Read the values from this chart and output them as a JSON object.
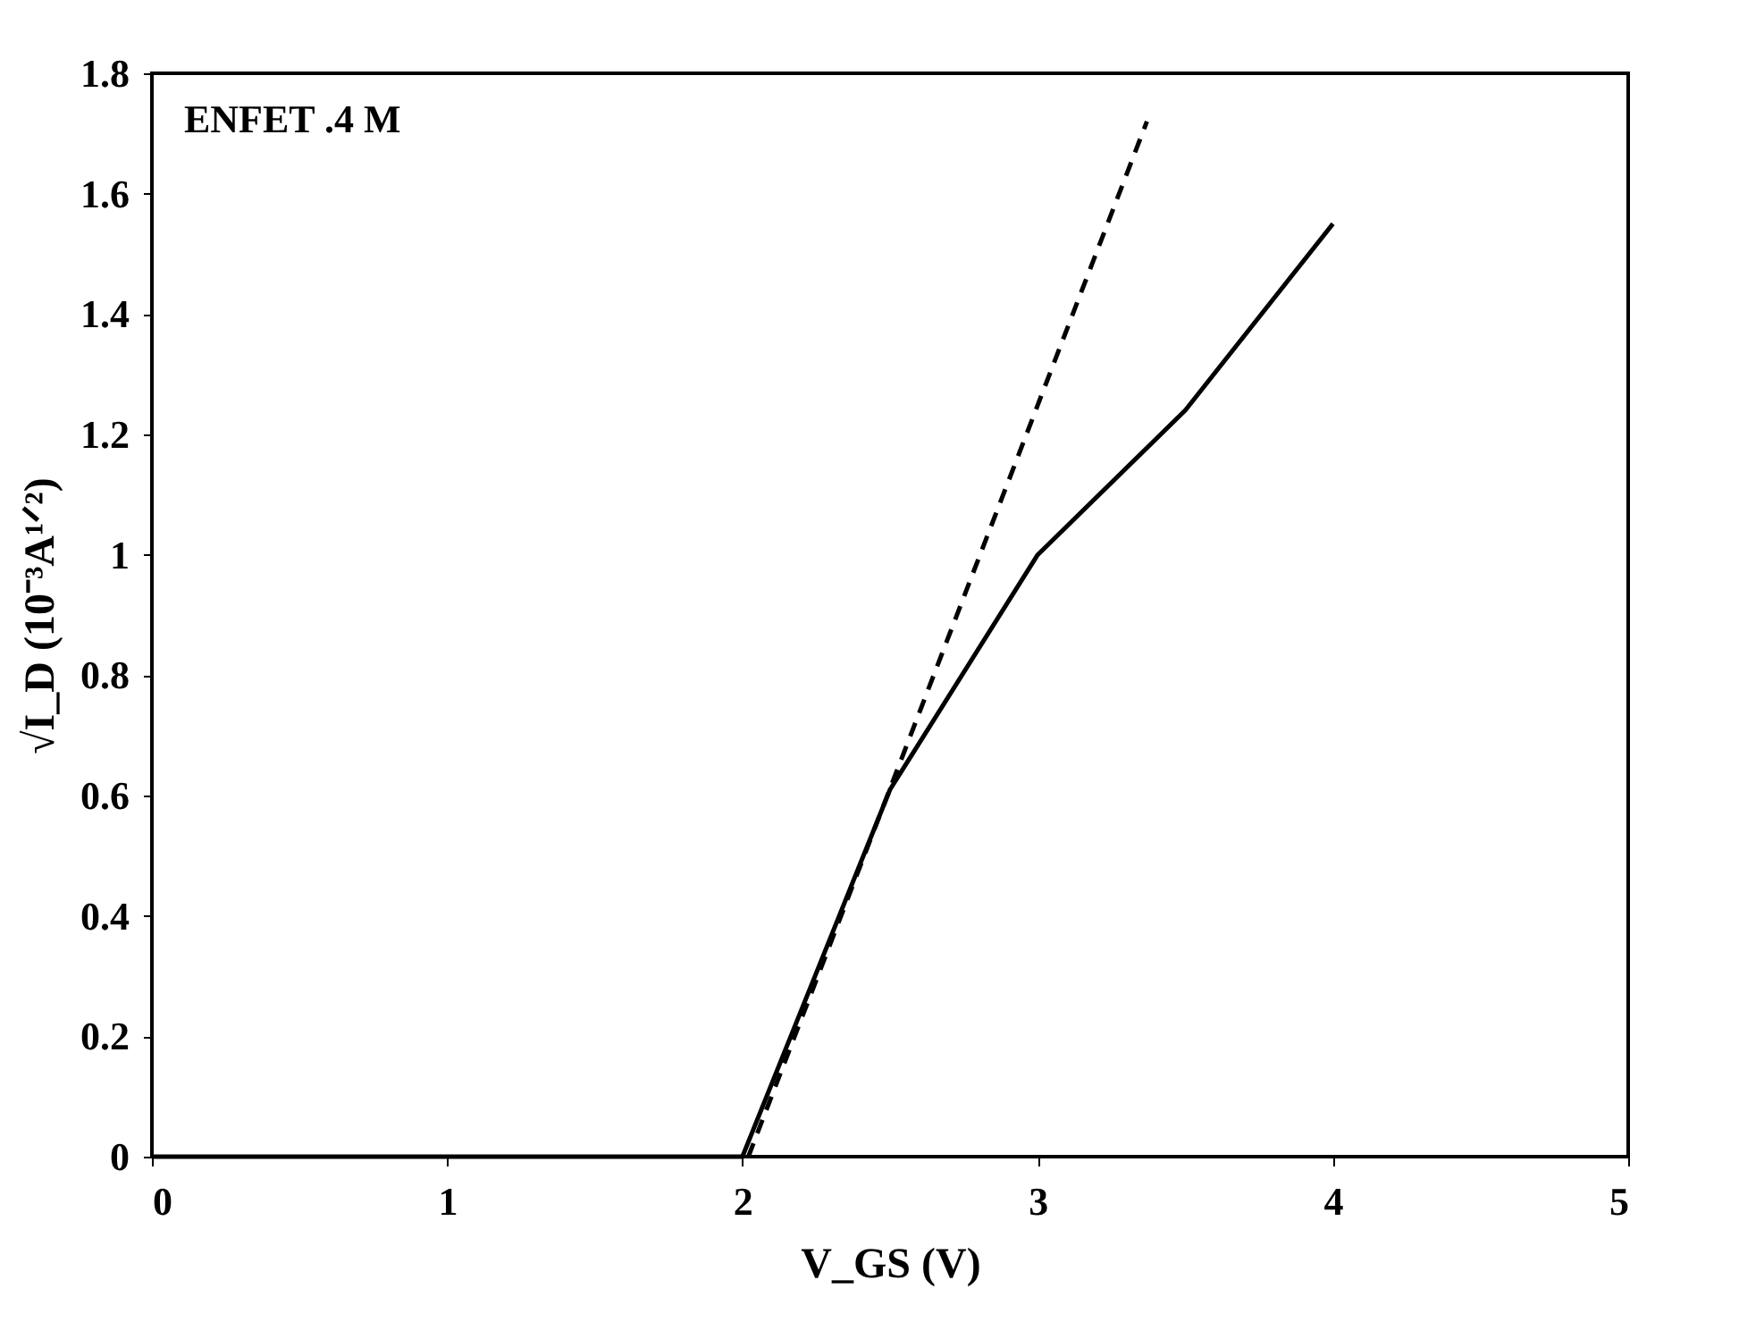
{
  "chart_data": {
    "type": "line",
    "xlabel": "V_GS (V)",
    "ylabel": "√I_D (10⁻³A¹ᐟ²)",
    "annotations": [
      "ENFET .4 M"
    ],
    "xlim": [
      0,
      5
    ],
    "xticks": [
      0,
      1,
      2,
      3,
      4,
      5
    ],
    "ylim": [
      0,
      1.8
    ],
    "yticks": [
      0,
      0.2,
      0.4,
      0.6,
      0.8,
      1,
      1.2,
      1.4,
      1.6,
      1.8
    ],
    "grid": false,
    "marker": "none",
    "series": [
      {
        "color": "#000000",
        "line_style": "solid",
        "x": [
          0,
          1,
          2,
          2.5,
          3,
          3.5,
          4
        ],
        "values": [
          0,
          0,
          0,
          0.61,
          1.0,
          1.24,
          1.55
        ]
      },
      {
        "color": "#000000",
        "line_style": "dashed",
        "x": [
          2.02,
          3.37
        ],
        "values": [
          0,
          1.72
        ]
      }
    ]
  }
}
